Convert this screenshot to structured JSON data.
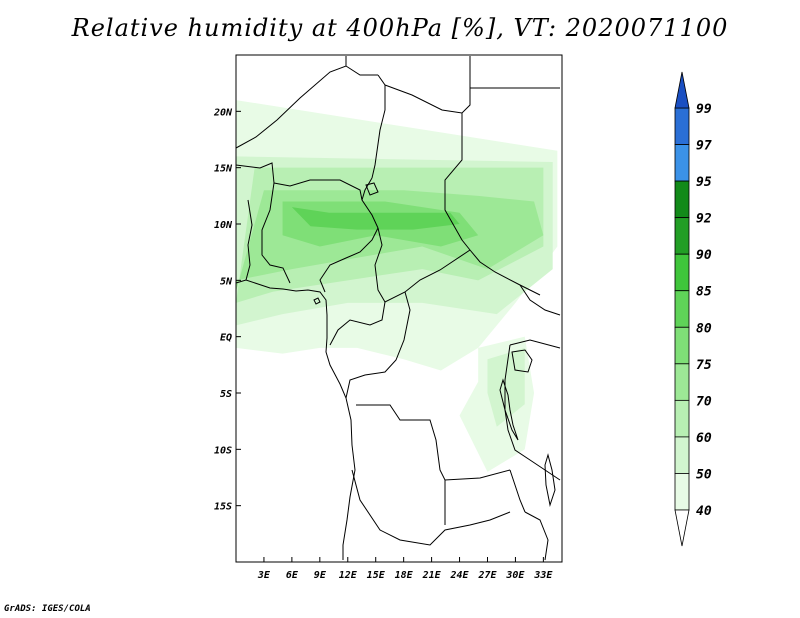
{
  "title": "Relative humidity at 400hPa [%], VT: 2020071100",
  "credit": "GrADS: IGES/COLA",
  "map": {
    "projection": "lat-lon",
    "lon_range": [
      0,
      35
    ],
    "lat_range": [
      -20,
      25
    ],
    "lat_ticks": [
      {
        "value": 20,
        "label": "20N"
      },
      {
        "value": 15,
        "label": "15N"
      },
      {
        "value": 10,
        "label": "10N"
      },
      {
        "value": 5,
        "label": "5N"
      },
      {
        "value": 0,
        "label": "EQ"
      },
      {
        "value": -5,
        "label": "5S"
      },
      {
        "value": -10,
        "label": "10S"
      },
      {
        "value": -15,
        "label": "15S"
      }
    ],
    "lon_ticks": [
      {
        "value": 3,
        "label": "3E"
      },
      {
        "value": 6,
        "label": "6E"
      },
      {
        "value": 9,
        "label": "9E"
      },
      {
        "value": 12,
        "label": "12E"
      },
      {
        "value": 15,
        "label": "15E"
      },
      {
        "value": 18,
        "label": "18E"
      },
      {
        "value": 21,
        "label": "21E"
      },
      {
        "value": 24,
        "label": "24E"
      },
      {
        "value": 27,
        "label": "27E"
      },
      {
        "value": 30,
        "label": "30E"
      },
      {
        "value": 33,
        "label": "33E"
      }
    ],
    "humid_regions": [
      {
        "level": 40,
        "lon": [
          0,
          34.5,
          34.5,
          30,
          26,
          22,
          18,
          13,
          9,
          5,
          0
        ],
        "lat": [
          21,
          16.5,
          8,
          3,
          -1,
          -3,
          -2,
          -1,
          -1,
          -1.5,
          -1
        ]
      },
      {
        "level": 50,
        "lon": [
          0,
          34,
          34,
          28,
          20,
          12,
          5,
          0
        ],
        "lat": [
          16,
          15.5,
          6,
          2,
          3,
          3,
          2,
          1
        ]
      },
      {
        "level": 60,
        "lon": [
          2,
          33,
          33,
          26,
          20,
          12,
          4,
          0
        ],
        "lat": [
          15,
          15,
          8,
          5,
          6,
          5,
          4,
          3
        ]
      },
      {
        "level": 70,
        "lon": [
          3,
          12,
          18,
          26,
          32,
          33,
          27,
          20,
          13,
          6,
          0,
          0
        ],
        "lat": [
          13,
          13,
          13,
          12.5,
          12,
          9,
          6,
          8,
          7,
          6,
          5,
          4
        ]
      },
      {
        "level": 75,
        "lon": [
          5,
          10,
          16,
          24,
          26,
          22,
          15,
          9,
          5
        ],
        "lat": [
          12,
          12,
          12,
          11,
          9,
          8,
          9,
          8,
          9
        ]
      },
      {
        "level": 80,
        "lon": [
          6,
          10,
          17,
          23,
          24,
          19,
          13,
          8
        ],
        "lat": [
          11.5,
          11,
          11,
          11,
          10,
          9.5,
          9.5,
          9.8
        ]
      },
      {
        "level": 40,
        "lon": [
          26,
          31,
          32,
          31,
          27,
          24,
          26
        ],
        "lat": [
          -1,
          0,
          -5,
          -10,
          -12,
          -7,
          -4
        ]
      },
      {
        "level": 50,
        "lon": [
          27,
          31,
          31,
          28,
          27
        ],
        "lat": [
          -2,
          -1,
          -6,
          -8,
          -5
        ]
      }
    ]
  },
  "colorbar": {
    "levels": [
      40,
      50,
      60,
      70,
      75,
      80,
      85,
      90,
      92,
      95,
      97,
      99
    ],
    "labels": [
      "40",
      "50",
      "60",
      "70",
      "75",
      "80",
      "85",
      "90",
      "92",
      "95",
      "97",
      "99"
    ],
    "colors": [
      "#ffffff",
      "#e8fbe6",
      "#d2f5cf",
      "#b8efb3",
      "#9de896",
      "#7fdf77",
      "#5fd358",
      "#3fc53b",
      "#229e25",
      "#128a19",
      "#3b92e8",
      "#2a6fd6",
      "#1a4fc2"
    ]
  }
}
